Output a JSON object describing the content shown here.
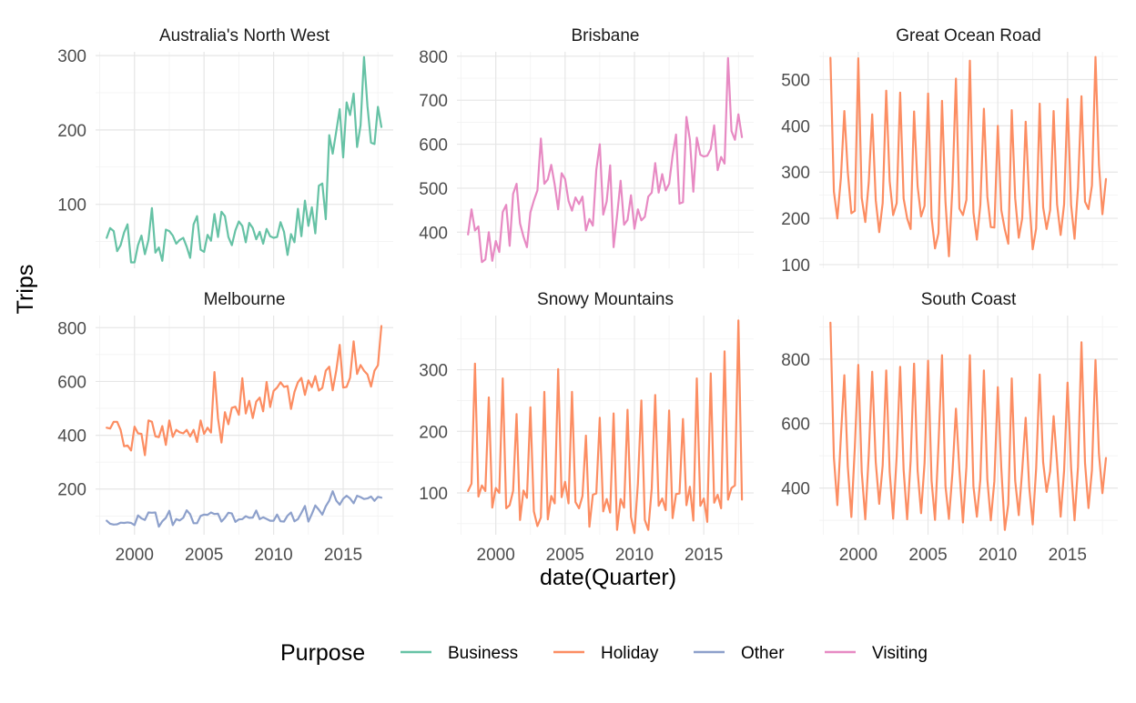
{
  "chart_data": {
    "type": "line",
    "xlabel": "date(Quarter)",
    "ylabel": "Trips",
    "x_ticks": [
      2000,
      2005,
      2010,
      2015
    ],
    "x_range": [
      1997.2,
      2018.6
    ],
    "x_start": 1998.0,
    "x_step": 0.25,
    "legend": {
      "title": "Purpose",
      "position": "bottom",
      "entries": [
        {
          "name": "Business",
          "color": "#66c2a5"
        },
        {
          "name": "Holiday",
          "color": "#fc8d62"
        },
        {
          "name": "Other",
          "color": "#8da0cb"
        },
        {
          "name": "Visiting",
          "color": "#e78ac3"
        }
      ]
    },
    "panels": [
      {
        "title": "Australia's North West",
        "ylim": [
          14,
          305
        ],
        "y_ticks": [
          100,
          200,
          300
        ],
        "series": [
          {
            "name": "Business",
            "color": "#66c2a5",
            "values": [
              55,
              68,
              64,
              37,
              45,
              62,
              73,
              22,
              22,
              45,
              58,
              33,
              52,
              95,
              35,
              42,
              24,
              66,
              64,
              58,
              47,
              52,
              55,
              43,
              28,
              73,
              84,
              39,
              36,
              59,
              51,
              87,
              56,
              90,
              84,
              56,
              45,
              65,
              77,
              71,
              49,
              75,
              68,
              53,
              63,
              47,
              67,
              57,
              55,
              56,
              76,
              63,
              32,
              60,
              49,
              94,
              57,
              105,
              71,
              96,
              61,
              125,
              128,
              80,
              193,
              168,
              198,
              228,
              163,
              237,
              220,
              249,
              177,
              206,
              298,
              232,
              183,
              181,
              231,
              204
            ]
          }
        ]
      },
      {
        "title": "Brisbane",
        "ylim": [
          318,
          810
        ],
        "y_ticks": [
          400,
          500,
          600,
          700,
          800
        ],
        "series": [
          {
            "name": "Visiting",
            "color": "#e78ac3",
            "values": [
              395,
              452,
              404,
              413,
              332,
              338,
              400,
              335,
              380,
              355,
              446,
              462,
              369,
              487,
              510,
              420,
              390,
              366,
              445,
              472,
              495,
              613,
              510,
              520,
              553,
              508,
              452,
              534,
              521,
              471,
              449,
              479,
              464,
              481,
              404,
              430,
              415,
              542,
              600,
              440,
              470,
              552,
              366,
              437,
              517,
              417,
              428,
              484,
              408,
              452,
              427,
              435,
              481,
              490,
              557,
              490,
              532,
              495,
              510,
              574,
              622,
              465,
              468,
              662,
              610,
              492,
              615,
              576,
              572,
              574,
              589,
              643,
              541,
              571,
              556,
              796,
              630,
              610,
              668,
              616
            ]
          }
        ]
      },
      {
        "title": "Great Ocean Road",
        "ylim": [
          92,
          560
        ],
        "y_ticks": [
          100,
          200,
          300,
          400,
          500
        ],
        "series": [
          {
            "name": "Holiday",
            "color": "#fc8d62",
            "values": [
              547,
              258,
              200,
              287,
              432,
              300,
              211,
              216,
              546,
              244,
              192,
              278,
              425,
              239,
              170,
              233,
              476,
              280,
              207,
              233,
              472,
              243,
              200,
              177,
              431,
              269,
              204,
              227,
              470,
              202,
              135,
              168,
              454,
              236,
              118,
              270,
              502,
              221,
              207,
              240,
              541,
              213,
              154,
              229,
              437,
              247,
              181,
              180,
              400,
              218,
              176,
              145,
              434,
              243,
              158,
              200,
              409,
              242,
              133,
              178,
              448,
              224,
              177,
              218,
              432,
              230,
              164,
              230,
              458,
              229,
              156,
              267,
              464,
              236,
              220,
              271,
              549,
              316,
              209,
              285
            ]
          }
        ]
      },
      {
        "title": "Melbourne",
        "ylim": [
          30,
          845
        ],
        "y_ticks": [
          200,
          400,
          600,
          800
        ],
        "series": [
          {
            "name": "Holiday",
            "color": "#fc8d62",
            "values": [
              428,
              425,
              450,
              450,
              420,
              359,
              362,
              343,
              432,
              407,
              405,
              326,
              455,
              450,
              396,
              393,
              434,
              364,
              455,
              394,
              420,
              411,
              407,
              420,
              396,
              420,
              375,
              455,
              405,
              428,
              410,
              635,
              463,
              373,
              486,
              441,
              502,
              506,
              476,
              612,
              481,
              528,
              464,
              525,
              540,
              489,
              598,
              505,
              565,
              577,
              597,
              580,
              583,
              498,
              561,
              597,
              613,
              550,
              604,
              579,
              620,
              566,
              576,
              640,
              655,
              567,
              640,
              736,
              577,
              580,
              614,
              749,
              628,
              661,
              640,
              626,
              581,
              640,
              660,
              806
            ]
          },
          {
            "name": "Other",
            "color": "#8da0cb",
            "values": [
              82,
              71,
              68,
              69,
              75,
              74,
              76,
              74,
              66,
              102,
              91,
              85,
              113,
              112,
              113,
              60,
              80,
              93,
              119,
              66,
              88,
              83,
              93,
              121,
              106,
              73,
              73,
              100,
              105,
              104,
              113,
              107,
              108,
              79,
              93,
              112,
              109,
              78,
              87,
              88,
              99,
              93,
              94,
              120,
              88,
              95,
              89,
              82,
              82,
              105,
              80,
              79,
              101,
              113,
              80,
              88,
              111,
              137,
              79,
              107,
              139,
              123,
              105,
              136,
              157,
              192,
              157,
              142,
              164,
              175,
              165,
              147,
              175,
              170,
              163,
              165,
              172,
              156,
              171,
              168
            ]
          }
        ]
      },
      {
        "title": "Snowy Mountains",
        "ylim": [
          32,
          388
        ],
        "y_ticks": [
          100,
          200,
          300
        ],
        "series": [
          {
            "name": "Holiday",
            "color": "#fc8d62",
            "values": [
              103,
              115,
              310,
              94,
              112,
              103,
              255,
              76,
              108,
              100,
              286,
              75,
              80,
              103,
              228,
              56,
              104,
              92,
              239,
              70,
              46,
              60,
              264,
              57,
              95,
              83,
              301,
              93,
              118,
              83,
              264,
              85,
              75,
              95,
              193,
              45,
              97,
              99,
              222,
              70,
              90,
              68,
              229,
              40,
              90,
              76,
              235,
              61,
              35,
              115,
              250,
              56,
              40,
              107,
              259,
              79,
              91,
              72,
              234,
              59,
              98,
              99,
              220,
              80,
              110,
              55,
              286,
              79,
              91,
              53,
              294,
              84,
              97,
              75,
              330,
              89,
              108,
              112,
              380,
              89
            ]
          }
        ]
      },
      {
        "title": "South Coast",
        "ylim": [
          255,
          935
        ],
        "y_ticks": [
          400,
          600,
          800
        ],
        "series": [
          {
            "name": "Holiday",
            "color": "#fc8d62",
            "values": [
              913,
              495,
              347,
              560,
              750,
              467,
              310,
              526,
              782,
              450,
              303,
              503,
              761,
              480,
              351,
              470,
              765,
              450,
              305,
              499,
              776,
              457,
              303,
              484,
              786,
              454,
              322,
              477,
              795,
              423,
              301,
              535,
              812,
              406,
              304,
              449,
              646,
              456,
              293,
              466,
              812,
              405,
              311,
              426,
              765,
              426,
              300,
              421,
              713,
              462,
              270,
              350,
              740,
              422,
              316,
              456,
              618,
              403,
              287,
              460,
              752,
              480,
              388,
              452,
              623,
              477,
              311,
              453,
              727,
              464,
              300,
              466,
              852,
              478,
              338,
              455,
              797,
              506,
              384,
              493
            ]
          }
        ]
      }
    ]
  }
}
